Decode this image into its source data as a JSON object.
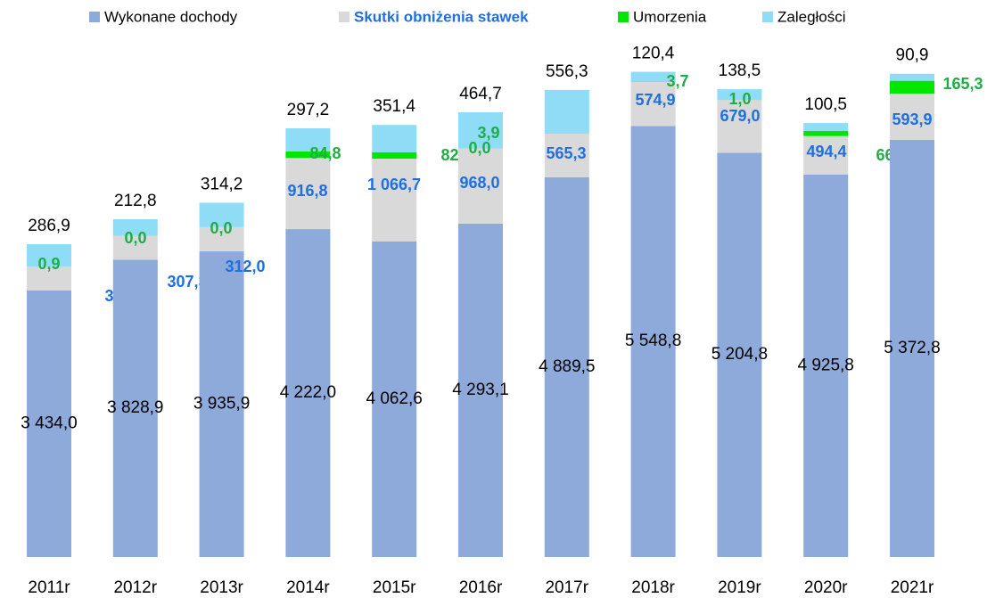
{
  "chart_data": {
    "type": "stacked_bar",
    "categories": [
      "2011r",
      "2012r",
      "2013r",
      "2014r",
      "2015r",
      "2016r",
      "2017r",
      "2018r",
      "2019r",
      "2020r",
      "2021r"
    ],
    "series": [
      {
        "name": "Wykonane dochody",
        "color": "#8eaadb",
        "values": [
          3434.0,
          3828.9,
          3935.9,
          4222.0,
          4062.6,
          4293.1,
          4889.5,
          5548.8,
          5204.8,
          4925.8,
          5372.8
        ],
        "value_labels": [
          "3 434,0",
          "3 828,9",
          "3 935,9",
          "4 222,0",
          "4 062,6",
          "4 293,1",
          "4 889,5",
          "5 548,8",
          "5 204,8",
          "4 925,8",
          "5 372,8"
        ]
      },
      {
        "name": "Skutki obniżenia stawek",
        "color": "#d9d9d9",
        "values": [
          306.4,
          307.3,
          312.0,
          916.8,
          1066.7,
          968.0,
          565.3,
          574.9,
          679.0,
          494.4,
          593.9
        ],
        "value_labels": [
          "306,4",
          "307,3",
          "312,0",
          "916,8",
          "1 066,7",
          "968,0",
          "565,3",
          "574,9",
          "679,0",
          "494,4",
          "593,9"
        ]
      },
      {
        "name": "Umorzenia",
        "color": "#00e600",
        "values": [
          0.9,
          0.0,
          0.0,
          84.8,
          82.7,
          0.0,
          3.9,
          3.7,
          1.0,
          66.9,
          165.3
        ],
        "value_labels": [
          "0,9",
          "0,0",
          "0,0",
          "84,8",
          "82,7",
          "0,0",
          "3,9",
          "3,7",
          "1,0",
          "66,9",
          "165,3"
        ]
      },
      {
        "name": "Zaległości",
        "color": "#8fdcf7",
        "values": [
          286.9,
          212.8,
          314.2,
          297.2,
          351.4,
          464.7,
          556.3,
          120.4,
          138.5,
          100.5,
          90.9
        ],
        "value_labels": [
          "286,9",
          "212,8",
          "314,2",
          "297,2",
          "351,4",
          "464,7",
          "556,3",
          "120,4",
          "138,5",
          "100,5",
          "90,9"
        ]
      }
    ],
    "ylim": [
      0,
      7000
    ]
  }
}
